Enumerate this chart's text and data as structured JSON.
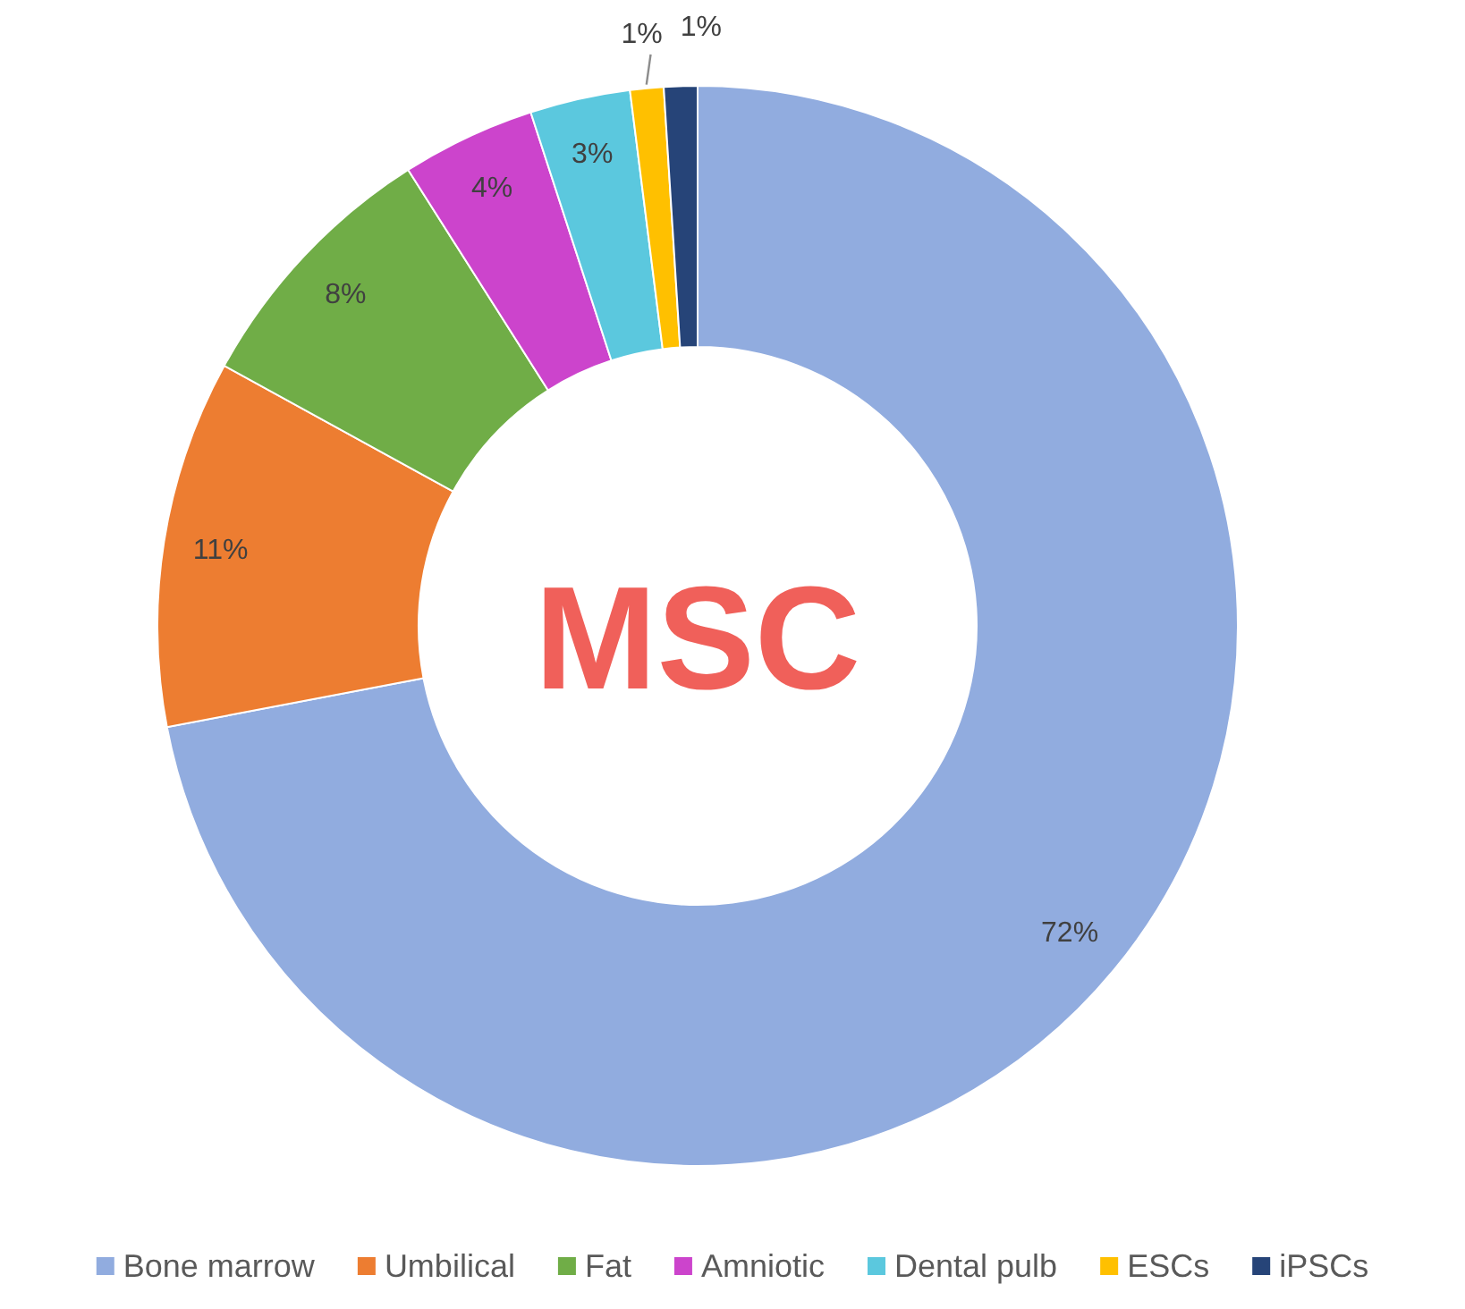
{
  "chart_data": {
    "type": "donut",
    "title": "MSC",
    "categories": [
      "Bone marrow",
      "Umbilical",
      "Fat",
      "Amniotic",
      "Dental pulb",
      "ESCs",
      "iPSCs"
    ],
    "values": [
      72,
      11,
      8,
      4,
      3,
      1,
      1
    ],
    "colors": [
      "#91acdf",
      "#ed7d31",
      "#70ad47",
      "#cc44cc",
      "#5bc8de",
      "#ffc000",
      "#264478"
    ],
    "value_labels": [
      "72%",
      "11%",
      "8%",
      "4%",
      "3%",
      "1%",
      "1%"
    ],
    "legend": "bottom"
  }
}
